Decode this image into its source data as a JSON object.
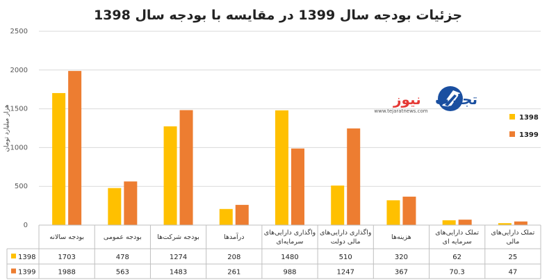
{
  "chart_data": {
    "type": "bar",
    "title": "جزئیات بودجه سال 1399 در مقایسه با بودجه سال 1398",
    "ylabel": "هزار میلیارد تومان",
    "ylim": [
      0,
      2500
    ],
    "yticks": [
      "0",
      "500",
      "1000",
      "1500",
      "2000",
      "2500"
    ],
    "grid": true,
    "legend_position": "right",
    "categories": [
      [
        "بودجه سالانه"
      ],
      [
        "بودجه عمومی"
      ],
      [
        "بودجه شرکت‌ها"
      ],
      [
        "درآمدها"
      ],
      [
        "واگذاری دارایی‌های",
        "سرمایه‌ای"
      ],
      [
        "واگذاری دارایی‌های",
        "مالی دولت"
      ],
      [
        "هزینه‌ها"
      ],
      [
        "تملک دارایی‌های",
        "سرمایه ای"
      ],
      [
        "تملک دارایی‌های",
        "مالی"
      ]
    ],
    "series": [
      {
        "name": "1398",
        "color": "#FFC000",
        "values": [
          1703,
          478,
          1274,
          208,
          1480,
          510,
          320,
          62,
          25
        ],
        "labels": [
          "1703",
          "478",
          "1274",
          "208",
          "1480",
          "510",
          "320",
          "62",
          "25"
        ]
      },
      {
        "name": "1399",
        "color": "#ED7D31",
        "values": [
          1988,
          563,
          1483,
          261,
          988,
          1247,
          367,
          70.3,
          47
        ],
        "labels": [
          "1988",
          "563",
          "1483",
          "261",
          "988",
          "1247",
          "367",
          "70.3",
          "47"
        ]
      }
    ]
  },
  "watermark": {
    "brand": "تجارت نیوز",
    "brand_part1": "تجارت",
    "brand_part2": "نیوز",
    "url": "www.tejaratnews.com",
    "colors": {
      "blue": "#1a4fa0",
      "red": "#e53935"
    }
  }
}
